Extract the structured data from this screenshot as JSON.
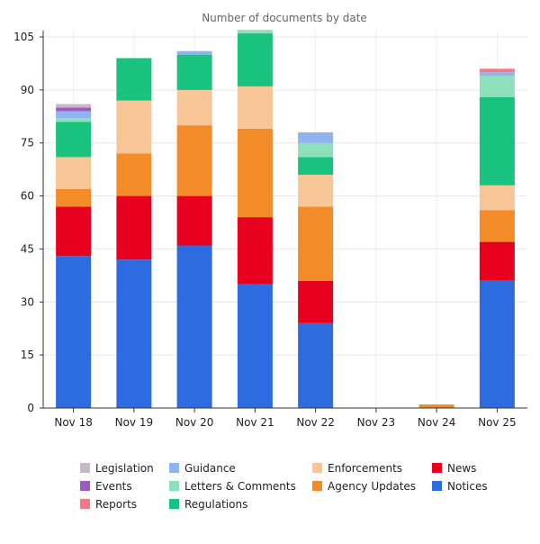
{
  "chart_data": {
    "type": "bar",
    "stacked": true,
    "title": "Number of documents by date",
    "xlabel": "",
    "ylabel": "",
    "ylim": [
      0,
      105
    ],
    "yticks": [
      0,
      15,
      30,
      45,
      60,
      75,
      90,
      105
    ],
    "grid": true,
    "legend_position": "bottom",
    "categories": [
      "Nov 18",
      "Nov 19",
      "Nov 20",
      "Nov 21",
      "Nov 22",
      "Nov 23",
      "Nov 24",
      "Nov 25"
    ],
    "series": [
      {
        "name": "Notices",
        "color": "#2c6be0",
        "values": [
          43,
          42,
          46,
          35,
          24,
          0,
          0,
          36
        ]
      },
      {
        "name": "News",
        "color": "#e8001f",
        "values": [
          14,
          18,
          14,
          19,
          12,
          0,
          0,
          11
        ]
      },
      {
        "name": "Agency Updates",
        "color": "#f38b28",
        "values": [
          5,
          12,
          20,
          25,
          21,
          0,
          1,
          9
        ]
      },
      {
        "name": "Enforcements",
        "color": "#f8c596",
        "values": [
          9,
          15,
          10,
          12,
          9,
          0,
          0,
          7
        ]
      },
      {
        "name": "Regulations",
        "color": "#19c27f",
        "values": [
          10,
          12,
          10,
          15,
          5,
          0,
          0,
          25
        ]
      },
      {
        "name": "Letters & Comments",
        "color": "#8ee0bd",
        "values": [
          1,
          0,
          0,
          1,
          4,
          0,
          0,
          6
        ]
      },
      {
        "name": "Guidance",
        "color": "#8fb4ee",
        "values": [
          2,
          0,
          1,
          0,
          3,
          0,
          0,
          1
        ]
      },
      {
        "name": "Reports",
        "color": "#f07a88",
        "values": [
          0,
          0,
          0,
          0,
          0,
          0,
          0,
          1
        ]
      },
      {
        "name": "Events",
        "color": "#9a5cc4",
        "values": [
          1,
          0,
          0,
          0,
          0,
          0,
          0,
          0
        ]
      },
      {
        "name": "Legislation",
        "color": "#c8b8c8",
        "values": [
          1,
          0,
          0,
          0,
          0,
          0,
          0,
          0
        ]
      }
    ],
    "legend_order": [
      "Legislation",
      "Events",
      "Reports",
      "Guidance",
      "Letters & Comments",
      "Regulations",
      "Enforcements",
      "Agency Updates",
      "News",
      "Notices"
    ]
  }
}
